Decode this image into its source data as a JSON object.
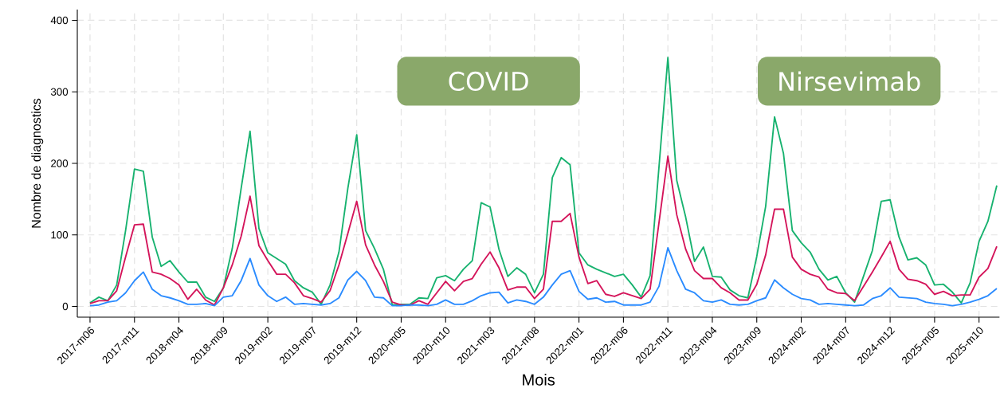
{
  "chart_data": {
    "type": "line",
    "xlabel": "Mois",
    "ylabel": "Nombre de diagnostics",
    "annotations": [
      "COVID",
      "Nirsevimab"
    ],
    "categories": [
      "2017-m06",
      null,
      null,
      null,
      null,
      "2017-m11",
      null,
      null,
      null,
      null,
      "2018-m04",
      null,
      null,
      null,
      null,
      "2018-m09",
      null,
      null,
      null,
      null,
      "2019-m02",
      null,
      null,
      null,
      null,
      "2019-m07",
      null,
      null,
      null,
      null,
      "2019-m12",
      null,
      null,
      null,
      null,
      "2020-m05",
      null,
      null,
      null,
      null,
      "2020-m10",
      null,
      null,
      null,
      null,
      "2021-m03",
      null,
      null,
      null,
      null,
      "2021-m08",
      null,
      null,
      null,
      null,
      "2022-m01",
      null,
      null,
      null,
      null,
      "2022-m06",
      null,
      null,
      null,
      null,
      "2022-m11",
      null,
      null,
      null,
      null,
      "2023-m04",
      null,
      null,
      null,
      null,
      "2023-m09",
      null,
      null,
      null,
      null,
      "2024-m02",
      null,
      null,
      null,
      null,
      "2024-m07",
      null,
      null,
      null,
      null,
      "2024-m12",
      null,
      null,
      null,
      null,
      "2025-m05",
      null,
      null,
      null,
      null,
      "2025-m10",
      null,
      null
    ],
    "series": [
      {
        "color": "#17b26f",
        "values": [
          5,
          13,
          8,
          30,
          106,
          192,
          189,
          97,
          56,
          64,
          48,
          34,
          34,
          13,
          7,
          26,
          81,
          165,
          245,
          109,
          75,
          67,
          59,
          36,
          26,
          20,
          3,
          30,
          76,
          165,
          240,
          106,
          81,
          52,
          2,
          3,
          3,
          12,
          11,
          40,
          43,
          36,
          52,
          64,
          145,
          139,
          80,
          42,
          54,
          45,
          19,
          45,
          180,
          208,
          198,
          75,
          58,
          52,
          47,
          42,
          45,
          30,
          13,
          43,
          195,
          348,
          176,
          125,
          63,
          83,
          42,
          41,
          23,
          15,
          12,
          70,
          140,
          265,
          214,
          106,
          89,
          76,
          52,
          37,
          42,
          19,
          6,
          42,
          78,
          147,
          149,
          97,
          65,
          68,
          58,
          30,
          31,
          20,
          5,
          33,
          91,
          119,
          169
        ]
      },
      {
        "color": "#d4145a",
        "values": [
          4,
          8,
          8,
          22,
          69,
          114,
          115,
          48,
          45,
          39,
          30,
          10,
          24,
          9,
          2,
          26,
          58,
          98,
          154,
          85,
          64,
          45,
          45,
          33,
          15,
          11,
          6,
          22,
          58,
          102,
          147,
          86,
          58,
          35,
          6,
          2,
          2,
          8,
          3,
          19,
          35,
          22,
          35,
          39,
          59,
          76,
          54,
          23,
          27,
          27,
          11,
          24,
          119,
          119,
          130,
          69,
          32,
          36,
          17,
          14,
          19,
          15,
          11,
          24,
          117,
          210,
          128,
          80,
          50,
          39,
          39,
          26,
          19,
          9,
          9,
          31,
          72,
          136,
          136,
          69,
          52,
          45,
          41,
          24,
          19,
          18,
          8,
          28,
          48,
          69,
          91,
          52,
          38,
          36,
          31,
          17,
          21,
          15,
          16,
          16,
          41,
          53,
          84
        ]
      },
      {
        "color": "#2a8bff",
        "values": [
          1,
          2,
          6,
          8,
          19,
          36,
          48,
          24,
          15,
          12,
          8,
          3,
          3,
          4,
          1,
          13,
          15,
          36,
          67,
          30,
          15,
          7,
          13,
          3,
          4,
          3,
          2,
          4,
          12,
          37,
          49,
          36,
          13,
          12,
          1,
          1,
          2,
          2,
          1,
          3,
          9,
          3,
          3,
          8,
          15,
          19,
          20,
          5,
          9,
          7,
          3,
          13,
          30,
          45,
          50,
          21,
          10,
          12,
          6,
          7,
          2,
          2,
          2,
          6,
          28,
          82,
          50,
          24,
          19,
          8,
          6,
          9,
          3,
          2,
          3,
          8,
          12,
          37,
          26,
          17,
          11,
          9,
          3,
          4,
          3,
          2,
          1,
          2,
          11,
          15,
          26,
          13,
          12,
          11,
          6,
          4,
          3,
          1,
          3,
          6,
          10,
          15,
          25
        ]
      }
    ],
    "ylim": [
      -15,
      415
    ],
    "yticks": [
      0,
      100,
      200,
      300,
      400
    ],
    "grid": true,
    "line_style": "solid"
  }
}
